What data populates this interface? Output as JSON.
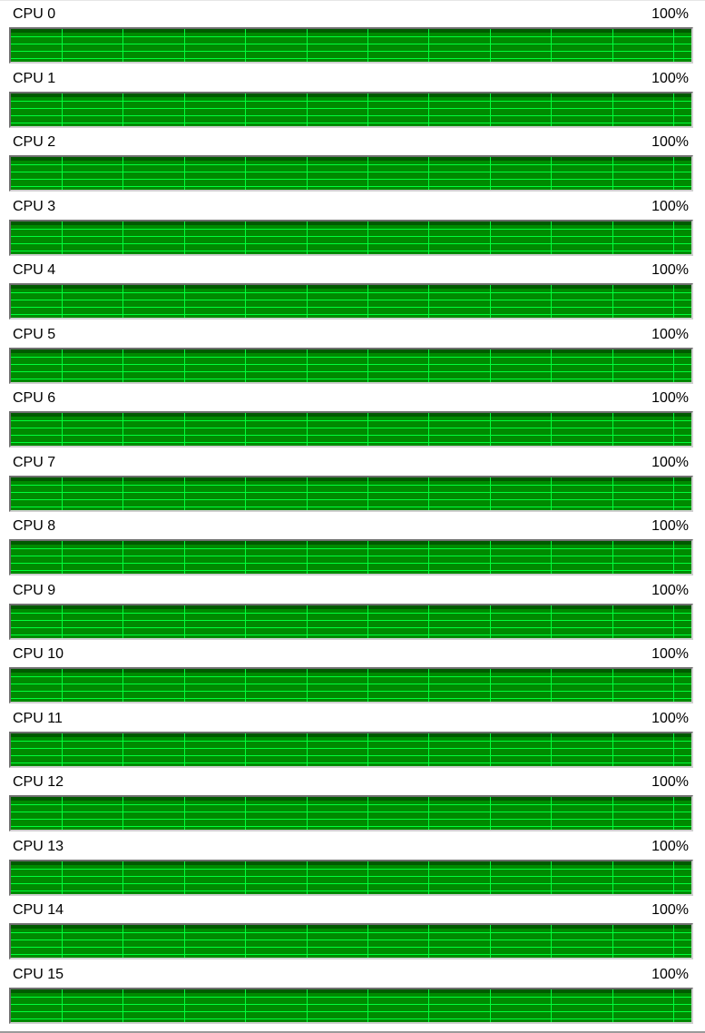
{
  "colors": {
    "graph_fill": "#008a00",
    "grid_line": "#00ff3a",
    "top_band": "#005a00"
  },
  "cpus": [
    {
      "label": "CPU 0",
      "usage": "100%"
    },
    {
      "label": "CPU 1",
      "usage": "100%"
    },
    {
      "label": "CPU 2",
      "usage": "100%"
    },
    {
      "label": "CPU 3",
      "usage": "100%"
    },
    {
      "label": "CPU 4",
      "usage": "100%"
    },
    {
      "label": "CPU 5",
      "usage": "100%"
    },
    {
      "label": "CPU 6",
      "usage": "100%"
    },
    {
      "label": "CPU 7",
      "usage": "100%"
    },
    {
      "label": "CPU 8",
      "usage": "100%"
    },
    {
      "label": "CPU 9",
      "usage": "100%"
    },
    {
      "label": "CPU 10",
      "usage": "100%"
    },
    {
      "label": "CPU 11",
      "usage": "100%"
    },
    {
      "label": "CPU 12",
      "usage": "100%"
    },
    {
      "label": "CPU 13",
      "usage": "100%"
    },
    {
      "label": "CPU 14",
      "usage": "100%"
    },
    {
      "label": "CPU 15",
      "usage": "100%"
    }
  ]
}
